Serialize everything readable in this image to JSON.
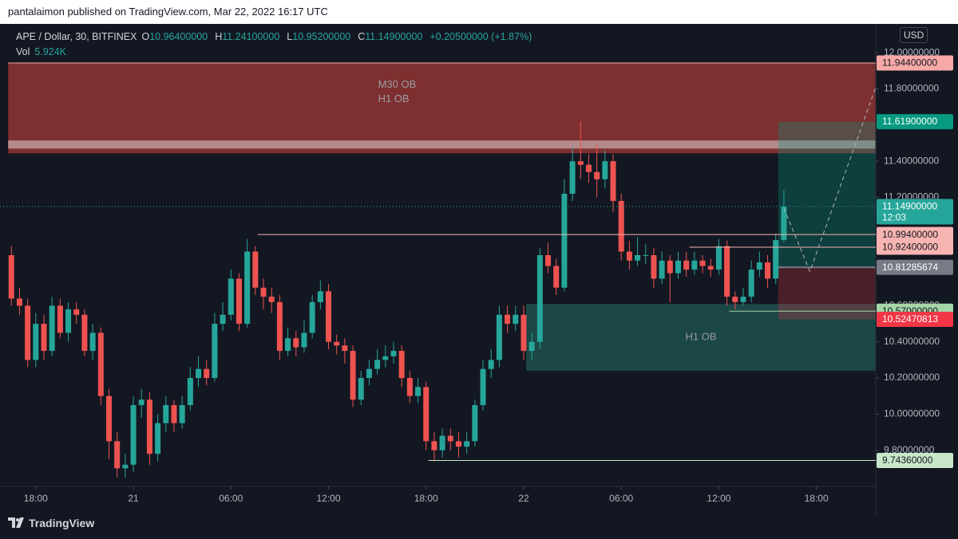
{
  "header": {
    "publisher": "pantalaimon published on TradingView.com, Mar 22, 2022 16:17 UTC"
  },
  "footer": {
    "brand": "TradingView"
  },
  "chart_data": {
    "type": "candlestick",
    "title": "APE / Dollar, 30, BITFINEX",
    "ohlc_keys": [
      "O",
      "H",
      "L",
      "C"
    ],
    "ohlc_values": [
      "10.96400000",
      "11.24100000",
      "10.95200000",
      "11.14900000"
    ],
    "change": "+0.20500000 (+1.87%)",
    "volume_label": "Vol",
    "volume_value": "5.924K",
    "currency": "USD",
    "up_color": "#26a69a",
    "down_color": "#ef5350",
    "open": [
      10.88,
      10.64,
      10.6,
      10.3,
      10.5,
      10.35,
      10.6,
      10.45,
      10.58,
      10.55,
      10.35,
      10.45,
      10.1,
      9.85,
      9.7,
      9.72,
      10.05,
      10.08,
      9.78,
      9.95,
      10.05,
      9.95,
      10.05,
      10.2,
      10.25,
      10.2,
      10.5,
      10.55,
      10.75,
      10.5,
      10.9,
      10.7,
      10.65,
      10.62,
      10.35,
      10.42,
      10.37,
      10.45,
      10.62,
      10.68,
      10.4,
      10.38,
      10.35,
      10.08,
      10.2,
      10.25,
      10.3,
      10.32,
      10.35,
      10.2,
      10.1,
      10.15,
      9.85,
      9.8,
      9.88,
      9.85,
      9.82,
      9.85,
      10.05,
      10.25,
      10.3,
      10.55,
      10.5,
      10.55,
      10.35,
      10.4,
      10.88,
      10.82,
      10.7,
      11.22,
      11.4,
      11.38,
      11.34,
      11.3,
      11.4,
      11.18,
      10.9,
      10.85,
      10.88,
      10.88,
      10.75,
      10.85,
      10.78,
      10.85,
      10.8,
      10.85,
      10.82,
      10.8,
      10.93,
      10.65,
      10.62,
      10.65,
      10.8,
      10.84,
      10.75,
      10.964
    ],
    "high": [
      10.93,
      10.7,
      10.64,
      10.56,
      10.55,
      10.65,
      10.64,
      10.62,
      10.62,
      10.58,
      10.5,
      10.48,
      10.14,
      9.9,
      9.78,
      10.1,
      10.14,
      10.12,
      10.0,
      10.1,
      10.08,
      10.1,
      10.26,
      10.32,
      10.3,
      10.56,
      10.62,
      10.8,
      10.78,
      10.97,
      10.93,
      10.75,
      10.7,
      10.66,
      10.48,
      10.46,
      10.52,
      10.66,
      10.74,
      10.72,
      10.44,
      10.42,
      10.38,
      10.24,
      10.3,
      10.36,
      10.38,
      10.4,
      10.38,
      10.24,
      10.2,
      10.18,
      9.9,
      9.92,
      9.92,
      9.9,
      9.9,
      10.08,
      10.3,
      10.36,
      10.6,
      10.6,
      10.6,
      10.6,
      10.45,
      10.92,
      10.95,
      10.86,
      11.3,
      11.48,
      11.62,
      11.44,
      11.5,
      11.46,
      11.44,
      11.22,
      10.96,
      10.98,
      10.94,
      10.92,
      10.9,
      10.88,
      10.9,
      10.9,
      10.9,
      10.88,
      10.86,
      10.97,
      10.96,
      10.68,
      10.7,
      10.85,
      10.9,
      10.88,
      11.0,
      11.241
    ],
    "low": [
      10.6,
      10.55,
      10.26,
      10.26,
      10.3,
      10.32,
      10.42,
      10.4,
      10.5,
      10.32,
      10.3,
      10.05,
      9.75,
      9.65,
      9.65,
      9.68,
      9.98,
      9.72,
      9.74,
      9.9,
      9.9,
      9.92,
      10.02,
      10.15,
      10.16,
      10.18,
      10.46,
      10.52,
      10.46,
      10.48,
      10.66,
      10.58,
      10.56,
      10.3,
      10.32,
      10.32,
      10.34,
      10.42,
      10.58,
      10.36,
      10.33,
      10.28,
      10.04,
      10.05,
      10.16,
      10.22,
      10.26,
      10.28,
      10.15,
      10.06,
      10.06,
      9.8,
      9.74,
      9.76,
      9.8,
      9.76,
      9.78,
      9.82,
      10.02,
      10.2,
      10.26,
      10.45,
      10.46,
      10.3,
      10.3,
      10.36,
      10.78,
      10.66,
      10.68,
      11.18,
      11.3,
      11.28,
      11.2,
      11.25,
      11.12,
      10.85,
      10.8,
      10.82,
      10.83,
      10.7,
      10.72,
      10.62,
      10.75,
      10.76,
      10.77,
      10.78,
      10.76,
      10.77,
      10.6,
      10.58,
      10.6,
      10.62,
      10.76,
      10.7,
      10.72,
      10.952
    ],
    "close": [
      10.64,
      10.6,
      10.3,
      10.5,
      10.35,
      10.6,
      10.45,
      10.58,
      10.55,
      10.35,
      10.45,
      10.1,
      9.85,
      9.7,
      9.72,
      10.05,
      10.08,
      9.78,
      9.95,
      10.05,
      9.95,
      10.05,
      10.2,
      10.25,
      10.2,
      10.5,
      10.55,
      10.75,
      10.5,
      10.9,
      10.7,
      10.65,
      10.62,
      10.35,
      10.42,
      10.37,
      10.45,
      10.62,
      10.68,
      10.4,
      10.38,
      10.35,
      10.08,
      10.2,
      10.25,
      10.3,
      10.32,
      10.35,
      10.2,
      10.1,
      10.15,
      9.85,
      9.8,
      9.88,
      9.85,
      9.82,
      9.85,
      10.05,
      10.25,
      10.3,
      10.55,
      10.5,
      10.55,
      10.35,
      10.4,
      10.88,
      10.82,
      10.7,
      11.22,
      11.4,
      11.38,
      11.34,
      11.3,
      11.4,
      11.18,
      10.9,
      10.85,
      10.88,
      10.88,
      10.75,
      10.85,
      10.78,
      10.85,
      10.8,
      10.85,
      10.82,
      10.8,
      10.93,
      10.65,
      10.62,
      10.65,
      10.8,
      10.84,
      10.75,
      10.964,
      11.149
    ],
    "xlim": [
      -1.4,
      106.3
    ],
    "xticks": [
      {
        "value": 3,
        "label": "18:00"
      },
      {
        "value": 15,
        "label": "21"
      },
      {
        "value": 27,
        "label": "06:00"
      },
      {
        "value": 39,
        "label": "12:00"
      },
      {
        "value": 51,
        "label": "18:00"
      },
      {
        "value": 63,
        "label": "22"
      },
      {
        "value": 75,
        "label": "06:00"
      },
      {
        "value": 87,
        "label": "12:00"
      },
      {
        "value": 99,
        "label": "18:00"
      }
    ],
    "ylim": [
      9.6,
      12.16
    ],
    "yticks": [
      {
        "value": 12,
        "label": "12.00000000"
      },
      {
        "value": 11.8,
        "label": "11.80000000"
      },
      {
        "value": 11.6,
        "label": "11.60000000"
      },
      {
        "value": 11.4,
        "label": "11.40000000"
      },
      {
        "value": 11.2,
        "label": "11.20000000"
      },
      {
        "value": 11,
        "label": "11.00000000"
      },
      {
        "value": 10.8,
        "label": "10.80000000"
      },
      {
        "value": 10.6,
        "label": "10.60000000"
      },
      {
        "value": 10.4,
        "label": "10.40000000"
      },
      {
        "value": 10.2,
        "label": "10.20000000"
      },
      {
        "value": 10,
        "label": "10.00000000"
      },
      {
        "value": 9.8,
        "label": "9.80000000"
      }
    ],
    "last_price": {
      "value": 11.149,
      "label": "11.14900000",
      "countdown": "12:03",
      "color": "#26a69a"
    },
    "levels": [
      {
        "value": 11.944,
        "label": "11.94400000",
        "start": -0.4,
        "color": "#f7a9a7",
        "text_color": "#131722"
      },
      {
        "value": 10.994,
        "label": "10.99400000",
        "start": 30.3,
        "color": "#f7b4b1",
        "text_color": "#131722"
      },
      {
        "value": 10.924,
        "label": "10.92400000",
        "start": 83.4,
        "color": "#f7b4b1",
        "text_color": "#131722"
      },
      {
        "value": 10.57,
        "label": "10.57000000",
        "start": 88.3,
        "color": "#a5d6a7",
        "text_color": "#131722"
      },
      {
        "value": 9.7436,
        "label": "9.74360000",
        "start": 51.3,
        "color": "#c8e6c9",
        "text_color": "#131722"
      }
    ],
    "zones": [
      {
        "labels": [
          "M30 OB",
          "H1 OB"
        ],
        "top": 11.944,
        "bottom": 11.444,
        "start": -0.4,
        "color": "#8b3232",
        "band": [
          11.515,
          11.47
        ]
      },
      {
        "labels": [
          "H1 OB"
        ],
        "top": 10.61,
        "bottom": 10.24,
        "start": 63.3,
        "color": "#1d4d4a"
      }
    ],
    "position": {
      "start": 94.3,
      "target": {
        "value": 11.619,
        "label": "11.61900000",
        "color": "#089981"
      },
      "entry": {
        "value": 10.81285674,
        "label": "10.81285674",
        "color": "#787b86"
      },
      "stop": {
        "value": 10.52470813,
        "label": "10.52470813",
        "color": "#f23645"
      }
    },
    "projection": {
      "x": [
        95,
        98.2,
        106.3
      ],
      "y": [
        11.14,
        10.79,
        11.81
      ]
    }
  }
}
